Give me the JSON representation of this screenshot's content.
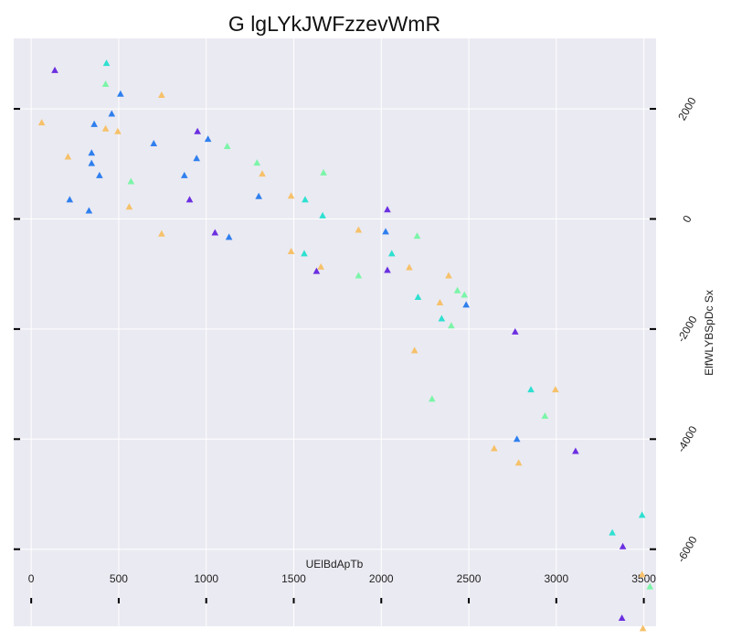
{
  "chart_data": {
    "type": "scatter",
    "title": "G lgLYkJWFzzevWmR",
    "xlabel": "UElBdApTb",
    "ylabel": "ElfWLYBSpDc Sx",
    "xlim": [
      -100,
      3570
    ],
    "ylim": [
      -7400,
      3280
    ],
    "x_ticks": [
      0,
      500,
      1000,
      1500,
      2000,
      2500,
      3000,
      3500
    ],
    "y_ticks": [
      2000,
      0,
      -2000,
      -4000,
      -6000
    ],
    "grid": true,
    "legend": "none",
    "marker": "triangle",
    "colors": {
      "background": "#eaeaf2",
      "grid": "#ffffff"
    },
    "points": [
      {
        "x": 135,
        "y": 2700,
        "color": "#6b2fe0"
      },
      {
        "x": 430,
        "y": 2830,
        "color": "#2ee0d0"
      },
      {
        "x": 425,
        "y": 2450,
        "color": "#7bf5a8"
      },
      {
        "x": 510,
        "y": 2270,
        "color": "#2f7fee"
      },
      {
        "x": 745,
        "y": 2250,
        "color": "#f6c16a"
      },
      {
        "x": 60,
        "y": 1750,
        "color": "#f6c16a"
      },
      {
        "x": 460,
        "y": 1910,
        "color": "#2f7fee"
      },
      {
        "x": 360,
        "y": 1720,
        "color": "#2f7fee"
      },
      {
        "x": 425,
        "y": 1640,
        "color": "#f6c16a"
      },
      {
        "x": 495,
        "y": 1590,
        "color": "#f6c16a"
      },
      {
        "x": 950,
        "y": 1590,
        "color": "#6b2fe0"
      },
      {
        "x": 1010,
        "y": 1450,
        "color": "#2f7fee"
      },
      {
        "x": 700,
        "y": 1370,
        "color": "#2f7fee"
      },
      {
        "x": 1120,
        "y": 1320,
        "color": "#7bf5a8"
      },
      {
        "x": 345,
        "y": 1200,
        "color": "#2f7fee"
      },
      {
        "x": 210,
        "y": 1130,
        "color": "#f6c16a"
      },
      {
        "x": 345,
        "y": 1010,
        "color": "#2f7fee"
      },
      {
        "x": 945,
        "y": 1100,
        "color": "#2f7fee"
      },
      {
        "x": 1290,
        "y": 1020,
        "color": "#7bf5a8"
      },
      {
        "x": 390,
        "y": 790,
        "color": "#2f7fee"
      },
      {
        "x": 875,
        "y": 790,
        "color": "#2f7fee"
      },
      {
        "x": 1320,
        "y": 820,
        "color": "#f6c16a"
      },
      {
        "x": 1670,
        "y": 840,
        "color": "#7bf5a8"
      },
      {
        "x": 570,
        "y": 680,
        "color": "#7bf5a8"
      },
      {
        "x": 220,
        "y": 350,
        "color": "#2f7fee"
      },
      {
        "x": 905,
        "y": 350,
        "color": "#6b2fe0"
      },
      {
        "x": 1300,
        "y": 410,
        "color": "#2f7fee"
      },
      {
        "x": 1485,
        "y": 420,
        "color": "#f6c16a"
      },
      {
        "x": 1565,
        "y": 350,
        "color": "#2ee0d0"
      },
      {
        "x": 560,
        "y": 220,
        "color": "#f6c16a"
      },
      {
        "x": 330,
        "y": 150,
        "color": "#2f7fee"
      },
      {
        "x": 2035,
        "y": 170,
        "color": "#6b2fe0"
      },
      {
        "x": 1665,
        "y": 60,
        "color": "#2ee0d0"
      },
      {
        "x": 745,
        "y": -270,
        "color": "#f6c16a"
      },
      {
        "x": 1050,
        "y": -250,
        "color": "#6b2fe0"
      },
      {
        "x": 1130,
        "y": -330,
        "color": "#2f7fee"
      },
      {
        "x": 1870,
        "y": -200,
        "color": "#f6c16a"
      },
      {
        "x": 2025,
        "y": -230,
        "color": "#2f7fee"
      },
      {
        "x": 2205,
        "y": -310,
        "color": "#7bf5a8"
      },
      {
        "x": 1485,
        "y": -590,
        "color": "#f6c16a"
      },
      {
        "x": 1560,
        "y": -630,
        "color": "#2ee0d0"
      },
      {
        "x": 2060,
        "y": -630,
        "color": "#2ee0d0"
      },
      {
        "x": 1655,
        "y": -870,
        "color": "#f6c16a"
      },
      {
        "x": 1630,
        "y": -950,
        "color": "#6b2fe0"
      },
      {
        "x": 2035,
        "y": -930,
        "color": "#6b2fe0"
      },
      {
        "x": 2160,
        "y": -880,
        "color": "#f6c16a"
      },
      {
        "x": 1870,
        "y": -1030,
        "color": "#7bf5a8"
      },
      {
        "x": 2385,
        "y": -1030,
        "color": "#f6c16a"
      },
      {
        "x": 2435,
        "y": -1300,
        "color": "#7bf5a8"
      },
      {
        "x": 2475,
        "y": -1380,
        "color": "#7bf5a8"
      },
      {
        "x": 2210,
        "y": -1420,
        "color": "#2ee0d0"
      },
      {
        "x": 2335,
        "y": -1520,
        "color": "#f6c16a"
      },
      {
        "x": 2485,
        "y": -1560,
        "color": "#2f7fee"
      },
      {
        "x": 2345,
        "y": -1810,
        "color": "#2ee0d0"
      },
      {
        "x": 2400,
        "y": -1940,
        "color": "#7bf5a8"
      },
      {
        "x": 2765,
        "y": -2050,
        "color": "#6b2fe0"
      },
      {
        "x": 2190,
        "y": -2390,
        "color": "#f6c16a"
      },
      {
        "x": 2855,
        "y": -3100,
        "color": "#2ee0d0"
      },
      {
        "x": 2995,
        "y": -3100,
        "color": "#f6c16a"
      },
      {
        "x": 2290,
        "y": -3270,
        "color": "#7bf5a8"
      },
      {
        "x": 2935,
        "y": -3580,
        "color": "#7bf5a8"
      },
      {
        "x": 2775,
        "y": -4000,
        "color": "#2f7fee"
      },
      {
        "x": 2645,
        "y": -4170,
        "color": "#f6c16a"
      },
      {
        "x": 3110,
        "y": -4220,
        "color": "#6b2fe0"
      },
      {
        "x": 2785,
        "y": -4430,
        "color": "#f6c16a"
      },
      {
        "x": 3490,
        "y": -5380,
        "color": "#2ee0d0"
      },
      {
        "x": 3320,
        "y": -5700,
        "color": "#2ee0d0"
      },
      {
        "x": 3380,
        "y": -5950,
        "color": "#6b2fe0"
      },
      {
        "x": 3490,
        "y": -6460,
        "color": "#f6c16a"
      },
      {
        "x": 3535,
        "y": -6680,
        "color": "#7bf5a8"
      },
      {
        "x": 3375,
        "y": -7250,
        "color": "#6b2fe0"
      },
      {
        "x": 3495,
        "y": -7440,
        "color": "#f6c16a"
      }
    ]
  }
}
